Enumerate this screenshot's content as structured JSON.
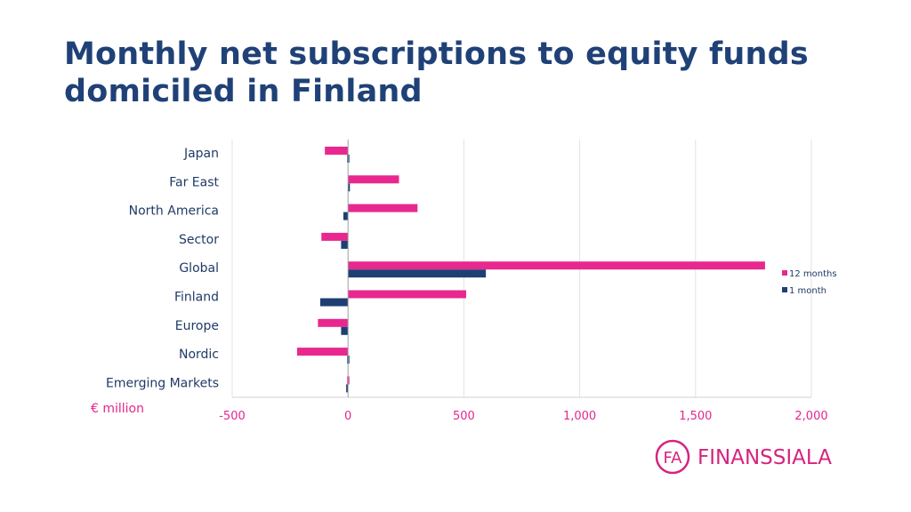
{
  "title": "Monthly net subscriptions to equity funds domiciled in Finland",
  "unit_label": "€ million",
  "brand": {
    "name": "FINANSSIALA",
    "monogram": "FA",
    "color": "#d6247f"
  },
  "colors": {
    "months12": "#e8288e",
    "month1": "#1f3f73",
    "text": "#1f3a66",
    "axis_text": "#e6268c",
    "grid": "#e3e3e3"
  },
  "chart_data": {
    "type": "bar",
    "orientation": "horizontal",
    "categories": [
      "Japan",
      "Far East",
      "North America",
      "Sector",
      "Global",
      "Finland",
      "Europe",
      "Nordic",
      "Emerging Markets"
    ],
    "series": [
      {
        "name": "12 months",
        "values": [
          -100,
          220,
          300,
          -115,
          1800,
          510,
          -130,
          -220,
          0
        ]
      },
      {
        "name": "1 month",
        "values": [
          0,
          8,
          -20,
          -30,
          595,
          -120,
          -30,
          0,
          -8
        ]
      }
    ],
    "xlim": [
      -500,
      2000
    ],
    "xticks": [
      "-500",
      "0",
      "500",
      "1,000",
      "1,500",
      "2,000"
    ],
    "xtick_values": [
      -500,
      0,
      500,
      1000,
      1500,
      2000
    ],
    "grid": true,
    "legend": "right"
  }
}
